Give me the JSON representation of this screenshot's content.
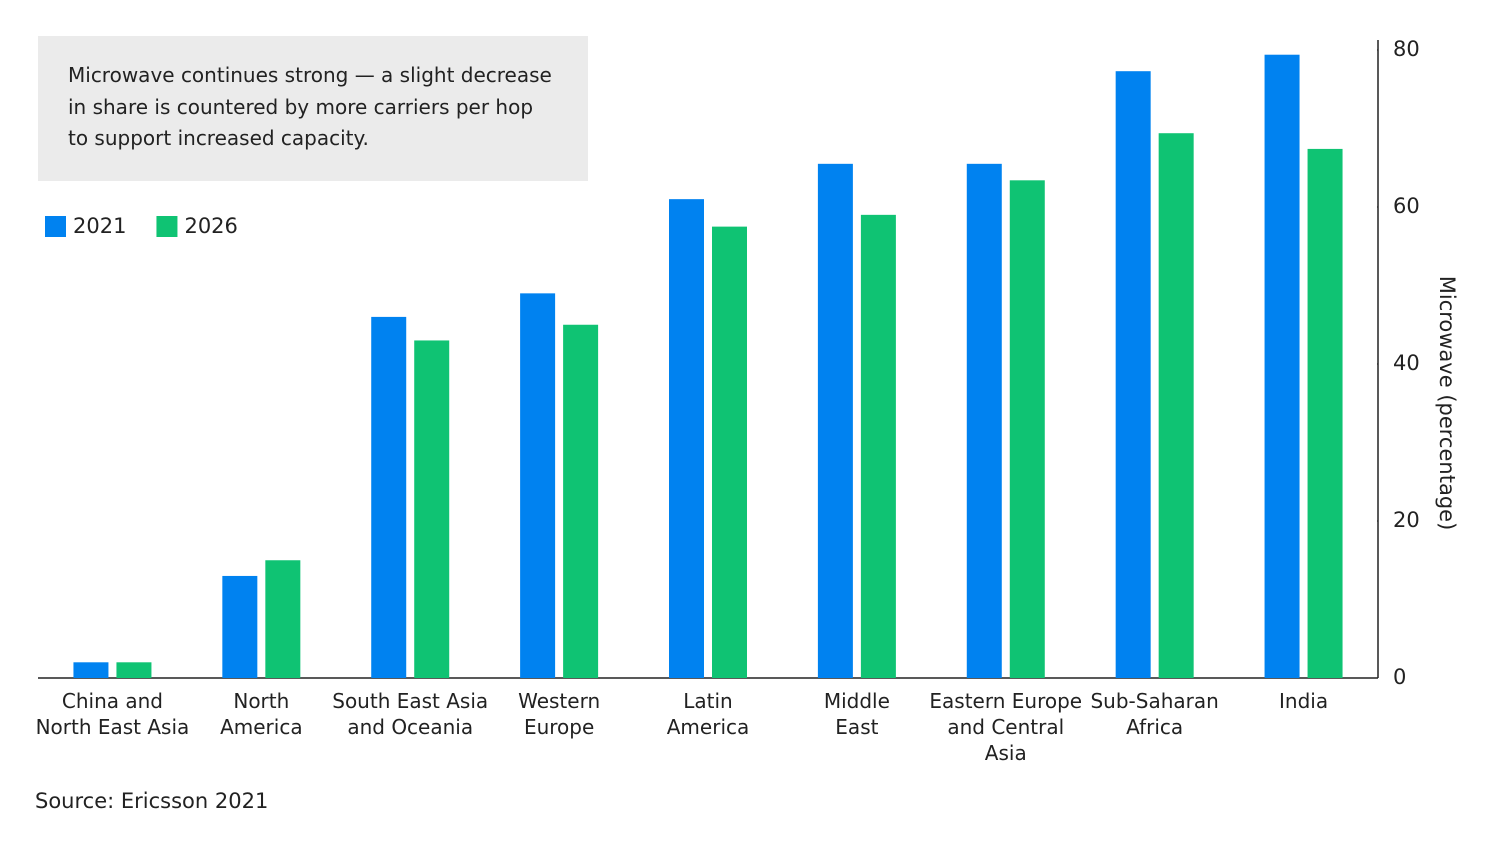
{
  "chart_data": {
    "type": "bar",
    "annotation": "Microwave continues strong — a slight decrease in share is countered by more carriers per hop to support increased capacity.",
    "y_axis_label": "Microwave (percentage)",
    "source": "Source: Ericsson 2021",
    "categories": [
      "China and\nNorth East Asia",
      "North\nAmerica",
      "South East Asia\nand Oceania",
      "Western\nEurope",
      "Latin\nAmerica",
      "Middle\nEast",
      "Eastern Europe\nand Central\nAsia",
      "Sub-Saharan\nAfrica",
      "India"
    ],
    "series": [
      {
        "name": "2021",
        "color": "#0082f0",
        "values": [
          2,
          13,
          46,
          49,
          61,
          65.5,
          65.5,
          77.3,
          79.4
        ]
      },
      {
        "name": "2026",
        "color": "#0fc373",
        "values": [
          2,
          15,
          43,
          45,
          57.5,
          59,
          63.4,
          69.4,
          67.4
        ]
      }
    ],
    "ylim": [
      0,
      80
    ],
    "yticks": [
      0,
      20,
      40,
      60,
      80
    ],
    "y_axis_side": "right",
    "grid": false
  }
}
